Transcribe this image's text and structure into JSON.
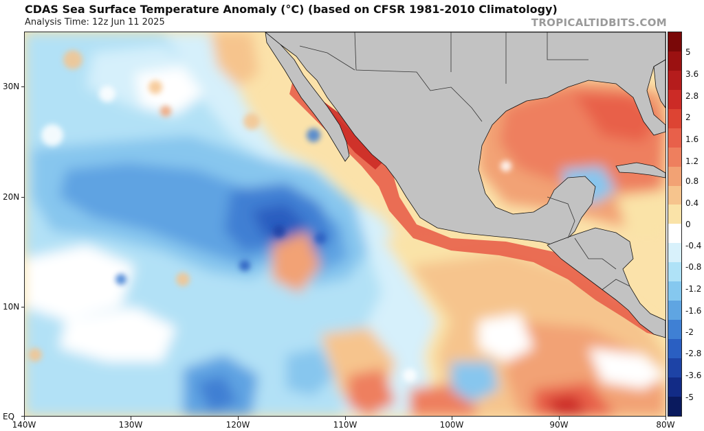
{
  "title": "CDAS Sea Surface Temperature Anomaly (°C) (based on CFSR 1981-2010 Climatology)",
  "subtitle": "Analysis Time: 12z Jun 11 2025",
  "credit": "TROPICALTIDBITS.COM",
  "axes": {
    "lat_labels": [
      "30N",
      "20N",
      "10N",
      "EQ"
    ],
    "lon_labels": [
      "140W",
      "130W",
      "120W",
      "110W",
      "100W",
      "90W",
      "80W"
    ]
  },
  "colorbar": {
    "labels": [
      "5",
      "3.6",
      "2.8",
      "2",
      "1.6",
      "1.2",
      "0.8",
      "0.4",
      "0",
      "-0.4",
      "-0.8",
      "-1.2",
      "-1.6",
      "-2",
      "-2.8",
      "-3.6",
      "-5"
    ],
    "colors": [
      "#7a0808",
      "#9b1111",
      "#b51c1c",
      "#cc2b26",
      "#dd4433",
      "#e8604a",
      "#ee7f5e",
      "#f2a274",
      "#f6c48d",
      "#fae3a8",
      "#ffffff",
      "#d8f1fb",
      "#afe2f7",
      "#85c8ef",
      "#5fa5e2",
      "#3f80d4",
      "#2a5fc2",
      "#1d43a6",
      "#122b86",
      "#0a1a5e"
    ]
  },
  "map_colors": {
    "land": "#c2c2c2",
    "ocean_base": "#fde4ad"
  }
}
